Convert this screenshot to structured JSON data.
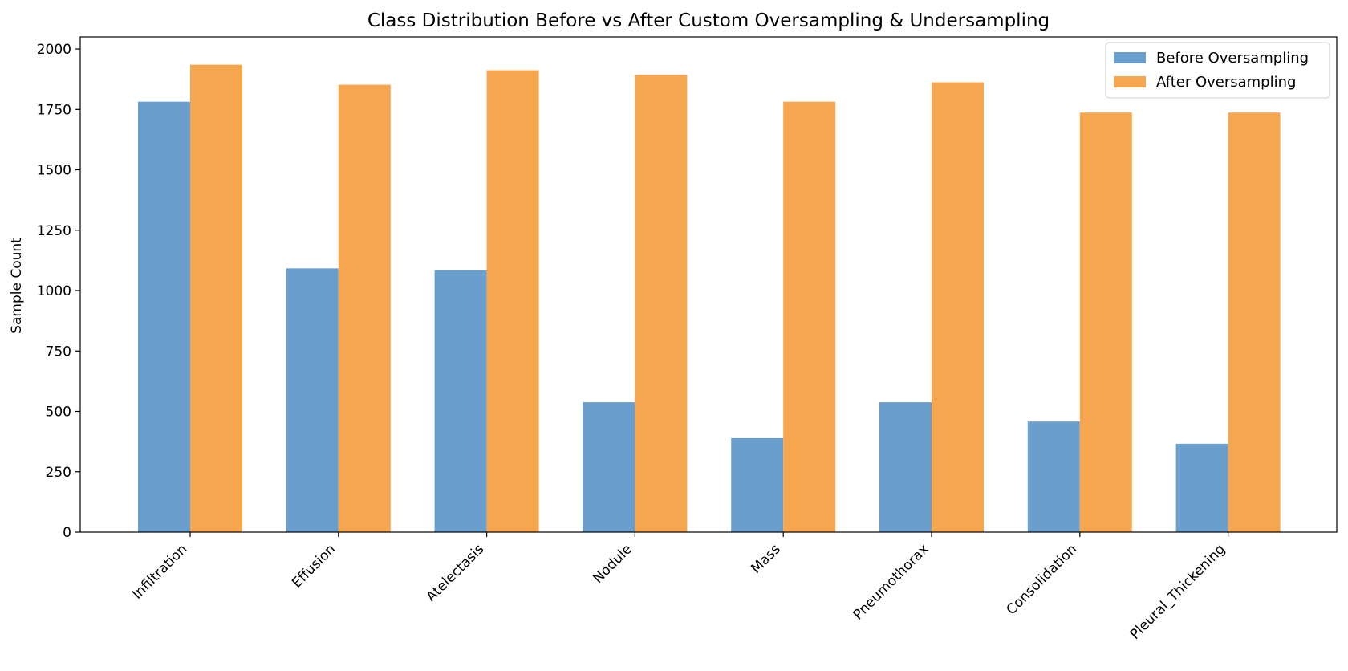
{
  "chart_data": {
    "type": "bar",
    "title": "Class Distribution Before vs After Custom Oversampling & Undersampling",
    "xlabel": "",
    "ylabel": "Sample Count",
    "categories": [
      "Infiltration",
      "Effusion",
      "Atelectasis",
      "Nodule",
      "Mass",
      "Pneumothorax",
      "Consolidation",
      "Pleural_Thickening"
    ],
    "series": [
      {
        "name": "Before Oversampling",
        "color": "#6a9fcd",
        "values": [
          1782,
          1092,
          1084,
          538,
          389,
          538,
          458,
          366
        ]
      },
      {
        "name": "After Oversampling",
        "color": "#f7a650",
        "values": [
          1935,
          1852,
          1912,
          1893,
          1782,
          1862,
          1737,
          1737
        ]
      }
    ],
    "ylim": [
      0,
      2050
    ],
    "yticks": [
      0,
      250,
      500,
      750,
      1000,
      1250,
      1500,
      1750,
      2000
    ],
    "grid": false,
    "legend_position": "top-right"
  }
}
